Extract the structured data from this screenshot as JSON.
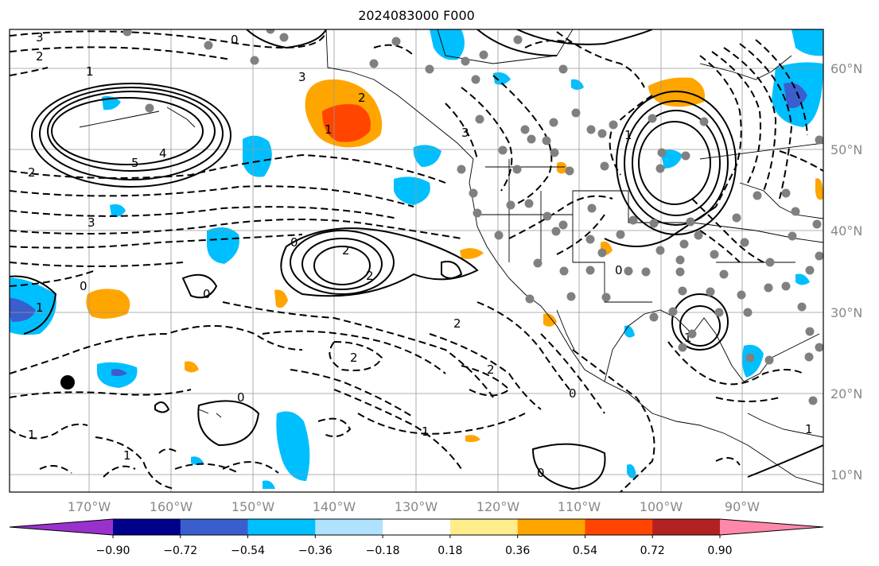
{
  "title": "2024083000 F000",
  "map": {
    "lon_labels": [
      "170°W",
      "160°W",
      "150°W",
      "140°W",
      "130°W",
      "120°W",
      "110°W",
      "100°W",
      "90°W"
    ],
    "lat_labels": [
      "60°N",
      "50°N",
      "40°N",
      "30°N",
      "20°N",
      "10°N"
    ],
    "contour_labels": [
      "3",
      "2",
      "1",
      "0",
      "3",
      "2",
      "1",
      "5",
      "4",
      "2",
      "3",
      "0",
      "2",
      "2",
      "0",
      "1",
      "0",
      "2",
      "2",
      "1",
      "0",
      "1",
      "1",
      "0",
      "2",
      "3",
      "0",
      "1",
      "1",
      "0",
      "1"
    ]
  },
  "colorbar": {
    "colors": [
      "#9932cc",
      "#00008b",
      "#3a5fcd",
      "#00bfff",
      "#b0e2ff",
      "#ffffff",
      "#ffec8b",
      "#ffa500",
      "#ff4500",
      "#b22222",
      "#ff88aa"
    ],
    "labels": [
      "−0.90",
      "−0.72",
      "−0.54",
      "−0.36",
      "−0.18",
      "0.18",
      "0.36",
      "0.54",
      "0.72",
      "0.90"
    ]
  }
}
